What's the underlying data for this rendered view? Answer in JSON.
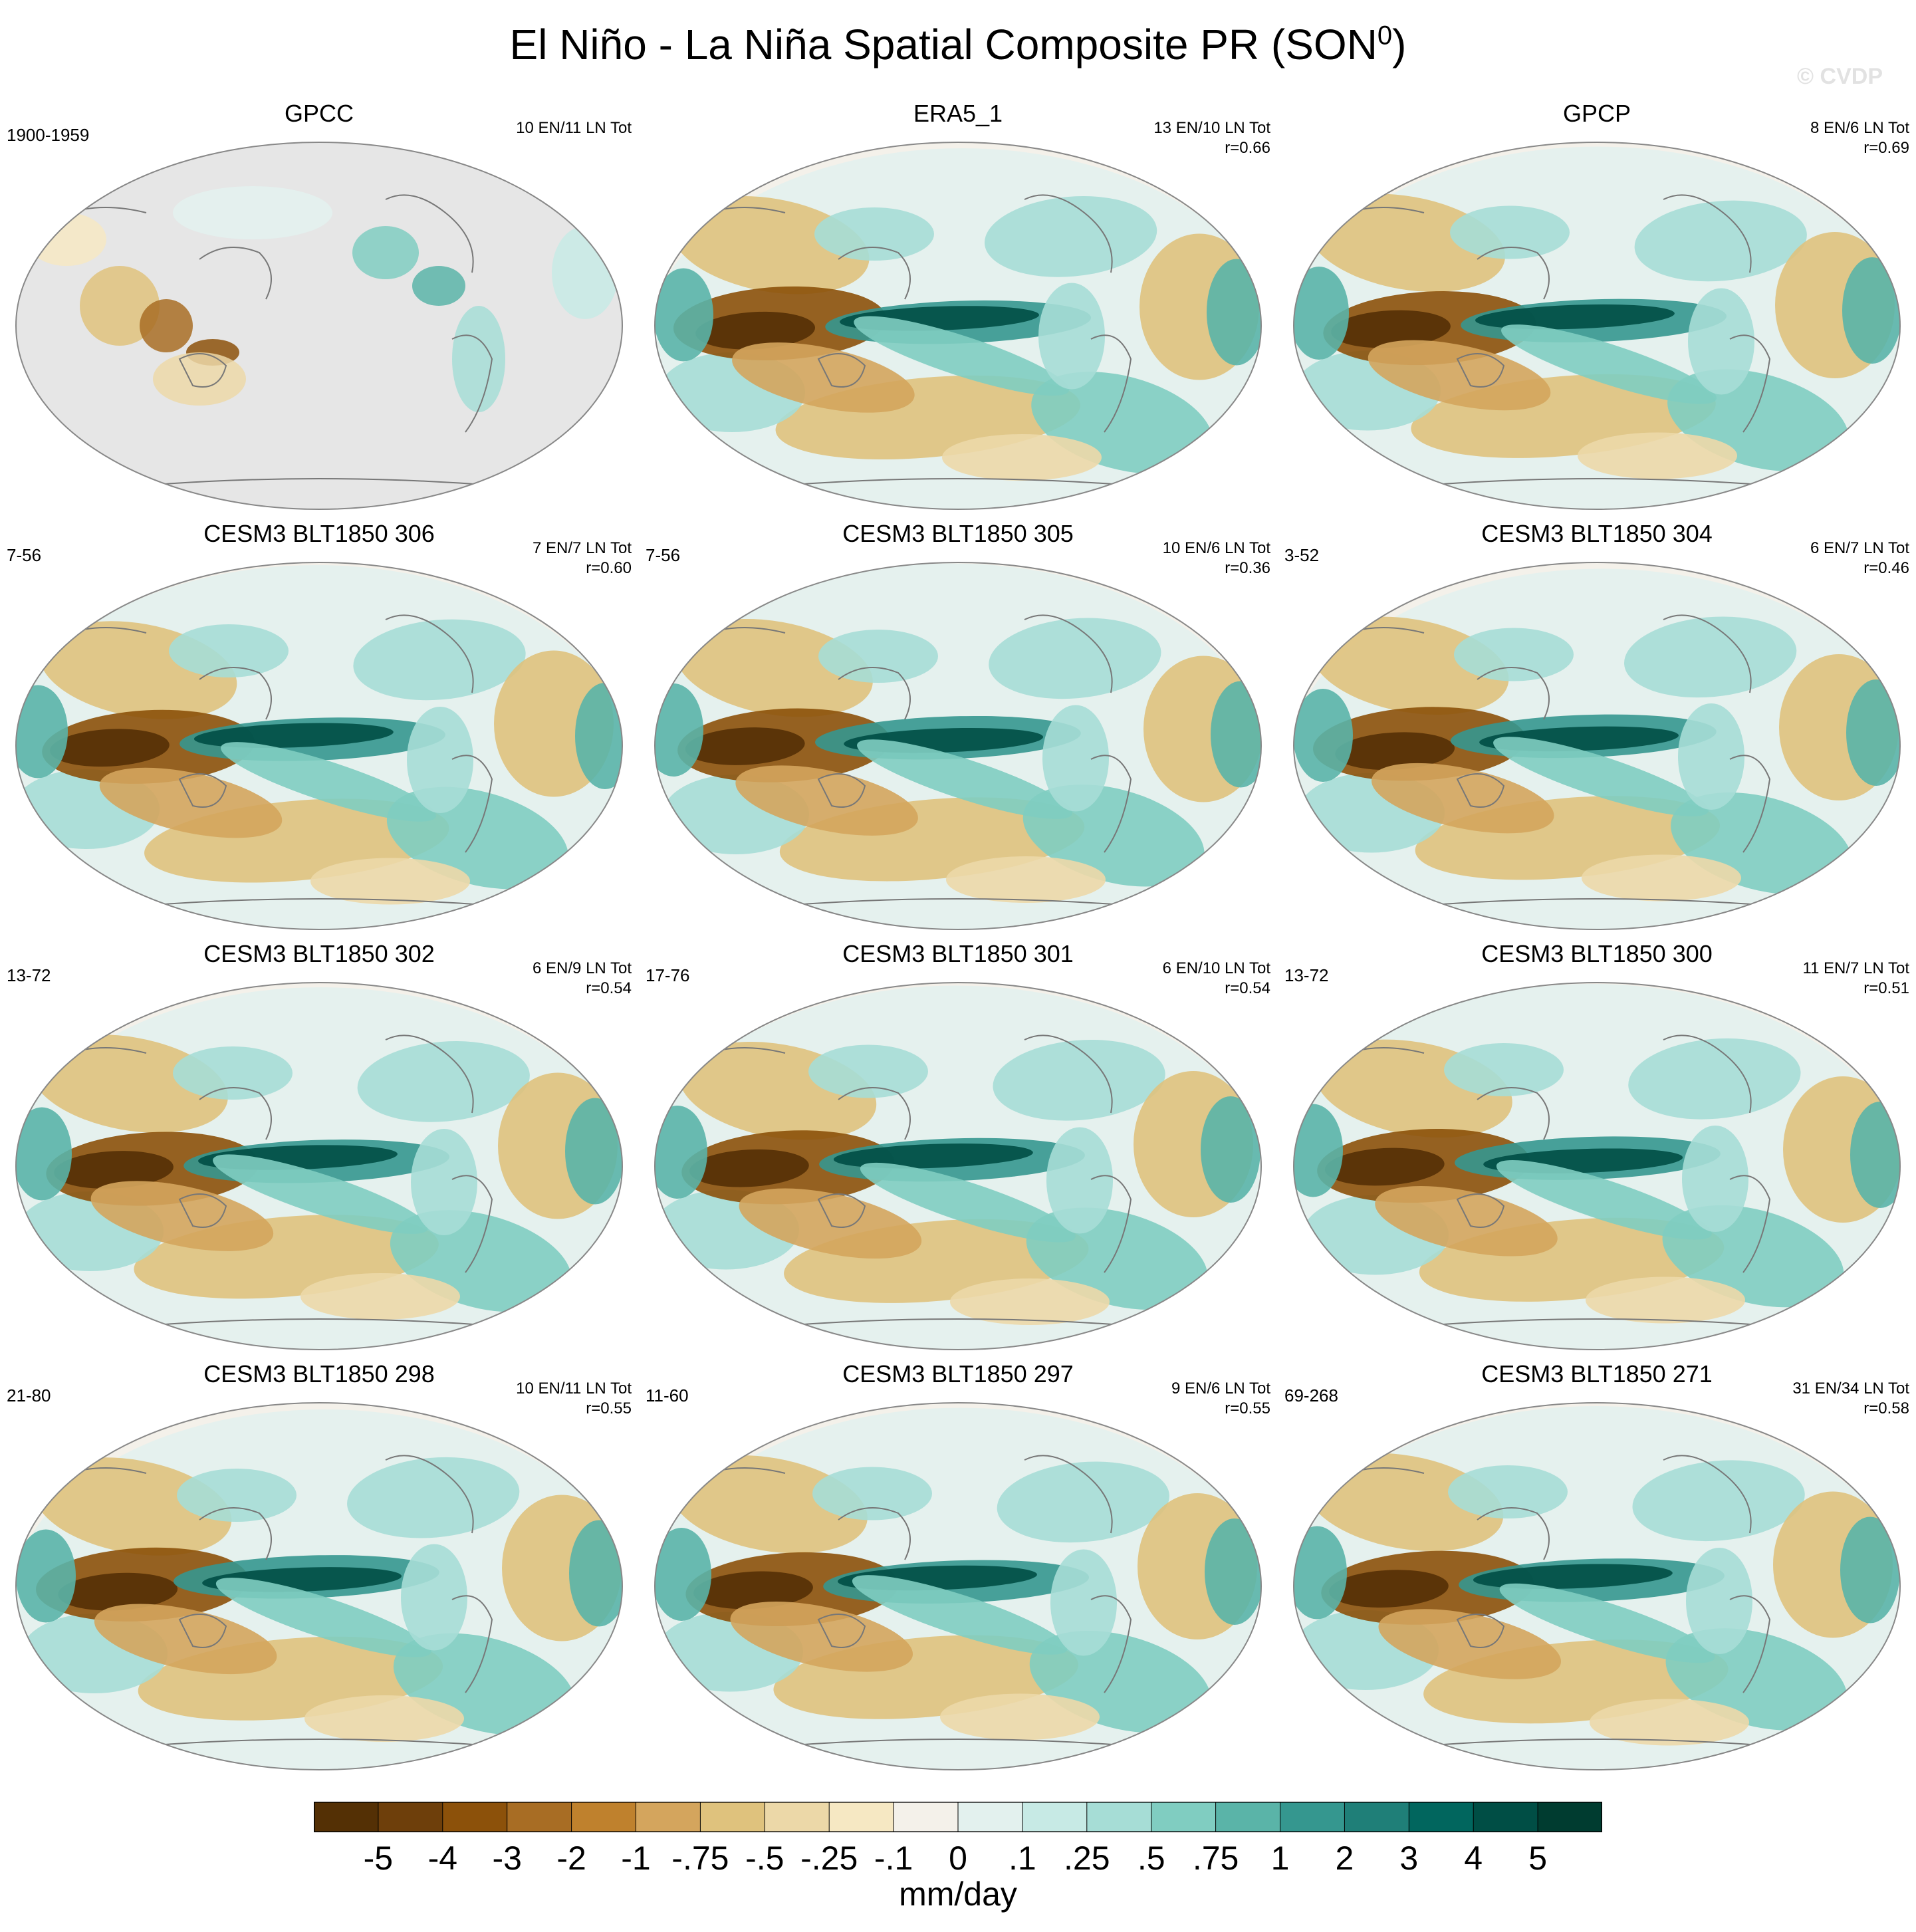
{
  "title": "El Niño - La Niña Spatial Composite PR (SON",
  "title_sup": "0",
  "title_close": ")",
  "watermark": "© CVDP",
  "colors": {
    "land_gray": "#e6e6e6",
    "ocean_base": "#f4f1ea",
    "scale": [
      "#543005",
      "#6e3f0b",
      "#8c510a",
      "#a86d24",
      "#bf812d",
      "#d4a55d",
      "#dfc27d",
      "#ecd8a8",
      "#f6e8c3",
      "#f4f1ea",
      "#e3f1ee",
      "#c7eae5",
      "#a6ddd6",
      "#80cdc1",
      "#5ab4a8",
      "#35978f",
      "#1f7f78",
      "#01665e",
      "#004e45",
      "#003c30"
    ]
  },
  "chart_data": {
    "type": "map-panels",
    "variable": "PR",
    "season": "SON",
    "units": "mm/day",
    "colorbar_levels": [
      "-5",
      "-4",
      "-3",
      "-2",
      "-1",
      "-.75",
      "-.5",
      "-.25",
      "-.1",
      "0",
      ".1",
      ".25",
      ".5",
      ".75",
      "1",
      "2",
      "3",
      "4",
      "5"
    ],
    "panels": [
      {
        "name": "GPCC",
        "years": "1900-1959",
        "counts": "10 EN/11 LN Tot",
        "r": "",
        "land_only": true
      },
      {
        "name": "ERA5_1",
        "years": "",
        "counts": "13 EN/10 LN Tot",
        "r": "r=0.66",
        "land_only": false
      },
      {
        "name": "GPCP",
        "years": "",
        "counts": "8 EN/6 LN Tot",
        "r": "r=0.69",
        "land_only": false
      },
      {
        "name": "CESM3 BLT1850 306",
        "years": "7-56",
        "counts": "7 EN/7 LN Tot",
        "r": "r=0.60",
        "land_only": false
      },
      {
        "name": "CESM3 BLT1850 305",
        "years": "7-56",
        "counts": "10 EN/6 LN Tot",
        "r": "r=0.36",
        "land_only": false
      },
      {
        "name": "CESM3 BLT1850 304",
        "years": "3-52",
        "counts": "6 EN/7 LN Tot",
        "r": "r=0.46",
        "land_only": false
      },
      {
        "name": "CESM3 BLT1850 302",
        "years": "13-72",
        "counts": "6 EN/9 LN Tot",
        "r": "r=0.54",
        "land_only": false
      },
      {
        "name": "CESM3 BLT1850 301",
        "years": "17-76",
        "counts": "6 EN/10 LN Tot",
        "r": "r=0.54",
        "land_only": false
      },
      {
        "name": "CESM3 BLT1850 300",
        "years": "13-72",
        "counts": "11 EN/7 LN Tot",
        "r": "r=0.51",
        "land_only": false
      },
      {
        "name": "CESM3 BLT1850 298",
        "years": "21-80",
        "counts": "10 EN/11 LN Tot",
        "r": "r=0.55",
        "land_only": false
      },
      {
        "name": "CESM3 BLT1850 297",
        "years": "11-60",
        "counts": "9 EN/6 LN Tot",
        "r": "r=0.55",
        "land_only": false
      },
      {
        "name": "CESM3 BLT1850 271",
        "years": "69-268",
        "counts": "31 EN/34 LN Tot",
        "r": "r=0.58",
        "land_only": false
      }
    ]
  }
}
